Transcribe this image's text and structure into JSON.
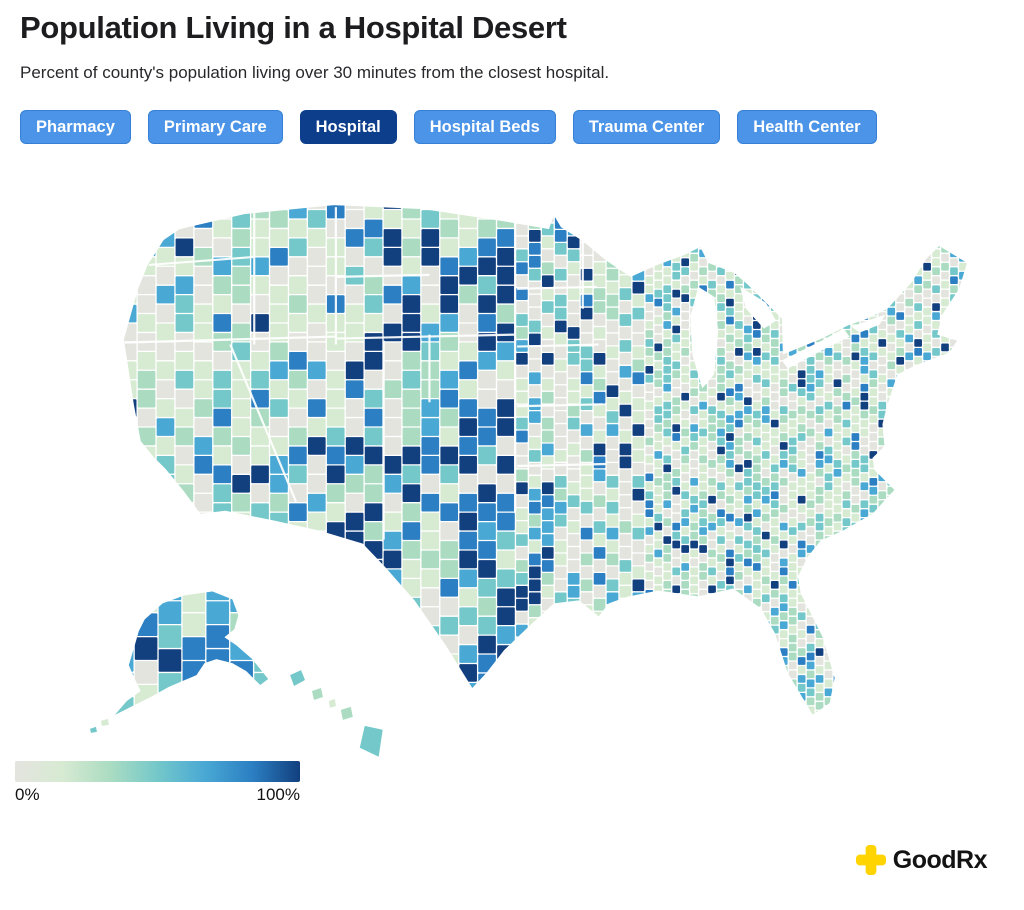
{
  "header": {
    "title": "Population Living in a Hospital Desert",
    "subtitle": "Percent of county's population living over 30 minutes from the closest hospital."
  },
  "filters": {
    "items": [
      {
        "label": "Pharmacy",
        "active": false
      },
      {
        "label": "Primary Care",
        "active": false
      },
      {
        "label": "Hospital",
        "active": true
      },
      {
        "label": "Hospital Beds",
        "active": false
      },
      {
        "label": "Trauma Center",
        "active": false
      },
      {
        "label": "Health Center",
        "active": false
      }
    ]
  },
  "legend": {
    "min_label": "0%",
    "max_label": "100%"
  },
  "branding": {
    "name": "GoodRx",
    "icon": "plus-cross-icon",
    "icon_color": "#ffd400"
  },
  "theme": {
    "button_bg": "#4b94e8",
    "button_border": "#3580d6",
    "button_active_bg": "#0d3e8c",
    "button_text": "#ffffff",
    "brand_text_color": "#131313"
  },
  "chart_data": {
    "type": "heatmap",
    "variant": "us-county-choropleth",
    "title": "Population Living in a Hospital Desert",
    "metric": "Percent of county's population living over 30 minutes from the closest hospital",
    "unit": "%",
    "domain": [
      0,
      100
    ],
    "legend_labels": [
      "0%",
      "100%"
    ],
    "color_scale": [
      "#e4e4df",
      "#d7ead2",
      "#abdcc2",
      "#74c8ca",
      "#49a8d4",
      "#2b7fc2",
      "#123f7e"
    ],
    "layers": [
      "Pharmacy",
      "Primary Care",
      "Hospital",
      "Hospital Beds",
      "Trauma Center",
      "Health Center"
    ],
    "active_layer": "Hospital",
    "regions": [
      "Contiguous United States",
      "Alaska",
      "Hawaii"
    ],
    "legend_position": "bottom-left",
    "pattern_notes": "Per-county percentages are unlabeled in the image. Darkest (near 100%) counties cluster in the Mountain West, Great Plains, and west/south Texas; the upper Midwest corn-belt counties are largely light gray (near 0%); eastern counties are mostly pale green/teal with scattered dark blue; Alaska boroughs mostly mid teal/blue."
  }
}
